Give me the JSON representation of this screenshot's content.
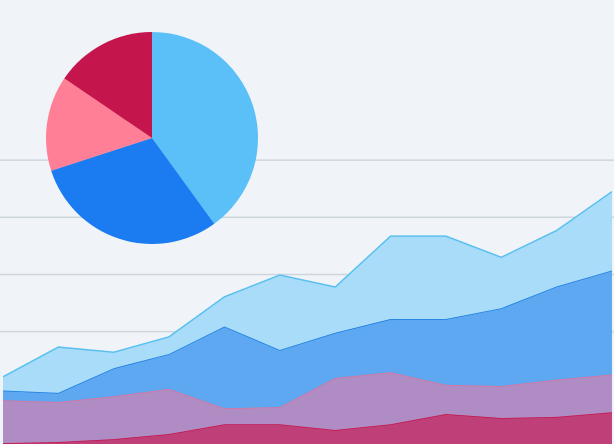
{
  "chart_data": [
    {
      "type": "pie",
      "values": [
        40,
        30,
        14.5,
        15.5
      ],
      "colors": [
        "#5bc0f8",
        "#1a7cf0",
        "#ff8096",
        "#c4164c"
      ]
    },
    {
      "type": "area",
      "stacked": true,
      "x": [
        0,
        1,
        2,
        3,
        4,
        5,
        6,
        7,
        8,
        9,
        10,
        11
      ],
      "xlim": [
        0,
        11
      ],
      "ylim": [
        0,
        7.8
      ],
      "yticks": [
        2,
        3,
        4,
        5
      ],
      "grid": true,
      "series": [
        {
          "color": "#bf3f78",
          "line": "#c4164c",
          "values": [
            0.05,
            0.07,
            0.12,
            0.21,
            0.38,
            0.38,
            0.28,
            0.38,
            0.56,
            0.49,
            0.51,
            0.59
          ]
        },
        {
          "color": "#b08cc4",
          "line": "#e0709a",
          "values": [
            0.75,
            0.7,
            0.75,
            0.79,
            0.28,
            0.3,
            0.91,
            0.91,
            0.51,
            0.56,
            0.65,
            0.66
          ]
        },
        {
          "color": "#5ea8f2",
          "line": "#1a7ce0",
          "values": [
            0.17,
            0.16,
            0.49,
            0.61,
            1.43,
            1.0,
            0.79,
            0.93,
            1.15,
            1.36,
            1.63,
            1.82
          ]
        },
        {
          "color": "#a8dcf8",
          "line": "#5bc0f0",
          "values": [
            0.24,
            0.8,
            0.28,
            0.3,
            0.52,
            1.31,
            0.8,
            1.45,
            1.45,
            0.89,
            0.98,
            1.38
          ]
        }
      ]
    }
  ]
}
